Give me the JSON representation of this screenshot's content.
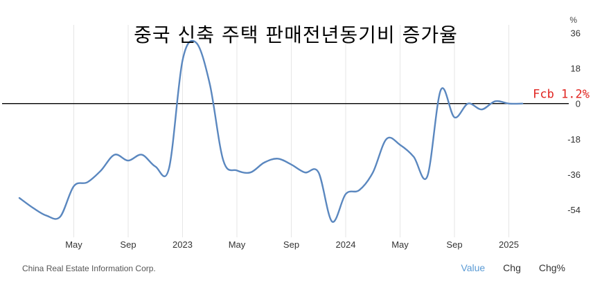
{
  "chart_data": {
    "type": "line",
    "title": "중국 신축 주택 판매전년동기비 증가율",
    "unit": "%",
    "y_ticks": [
      36,
      18,
      0,
      -18,
      -36,
      -54
    ],
    "ylim": [
      -68,
      40
    ],
    "x_tick_labels": [
      "May",
      "Sep",
      "2023",
      "May",
      "Sep",
      "2024",
      "May",
      "Sep",
      "2025"
    ],
    "x_tick_months": [
      4,
      8,
      12,
      16,
      20,
      24,
      28,
      32,
      36
    ],
    "xlim": [
      0,
      40
    ],
    "grid": "vertical",
    "series": [
      {
        "color": "#5a87bf",
        "x": [
          0,
          1,
          2,
          3,
          4,
          5,
          6,
          7,
          8,
          9,
          10,
          11,
          12,
          13,
          14,
          15,
          16,
          17,
          18,
          19,
          20,
          21,
          22,
          23,
          24,
          25,
          26,
          27,
          28,
          29,
          30,
          31,
          32,
          33,
          34,
          35,
          36,
          37
        ],
        "values": [
          -48,
          -53,
          -57,
          -57.5,
          -42,
          -40,
          -34,
          -26,
          -29,
          -26,
          -32,
          -33,
          22,
          31,
          10,
          -29,
          -34,
          -35,
          -30,
          -28,
          -31,
          -35,
          -35,
          -60,
          -46,
          -44,
          -35,
          -18,
          -21,
          -27,
          -37,
          7,
          -7,
          0,
          -3,
          1.2,
          0,
          0
        ]
      }
    ],
    "annotation": "Fcb 1.2%"
  },
  "source": "China Real Estate Information Corp.",
  "tabs": {
    "value": "Value",
    "chg": "Chg",
    "chg_pct": "Chg%"
  }
}
